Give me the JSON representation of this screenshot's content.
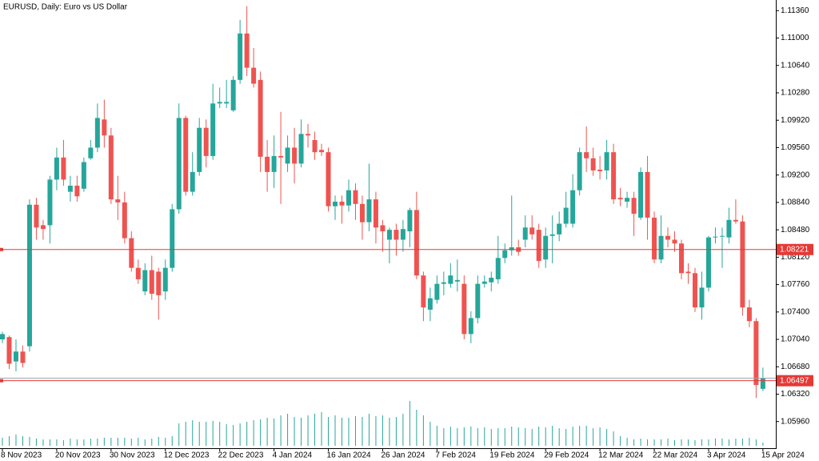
{
  "chart_data": {
    "type": "candlestick",
    "title": "EURUSD, Daily:  Euro vs US Dollar",
    "categories": [
      "8 Nov 2023",
      null,
      null,
      null,
      null,
      null,
      null,
      null,
      "20 Nov 2023",
      null,
      null,
      null,
      null,
      null,
      null,
      null,
      "30 Nov 2023",
      null,
      null,
      null,
      null,
      null,
      null,
      null,
      "12 Dec 2023",
      null,
      null,
      null,
      null,
      null,
      null,
      null,
      "22 Dec 2023",
      null,
      null,
      null,
      null,
      null,
      null,
      null,
      "4 Jan 2024",
      null,
      null,
      null,
      null,
      null,
      null,
      null,
      "16 Jan 2024",
      null,
      null,
      null,
      null,
      null,
      null,
      null,
      "26 Jan 2024",
      null,
      null,
      null,
      null,
      null,
      null,
      null,
      "7 Feb 2024",
      null,
      null,
      null,
      null,
      null,
      null,
      null,
      "19 Feb 2024",
      null,
      null,
      null,
      null,
      null,
      null,
      null,
      "29 Feb 2024",
      null,
      null,
      null,
      null,
      null,
      null,
      null,
      "12 Mar 2024",
      null,
      null,
      null,
      null,
      null,
      null,
      null,
      "22 Mar 2024",
      null,
      null,
      null,
      null,
      null,
      null,
      null,
      "3 Apr 2024",
      null,
      null,
      null,
      null,
      null,
      null,
      null,
      "15 Apr 2024"
    ],
    "open": [
      1.0704,
      1.0707,
      1.0675,
      1.0688,
      1.0695,
      1.0881,
      1.0854,
      1.0854,
      1.0914,
      1.0943,
      1.0898,
      1.0906,
      1.0902,
      1.0942,
      1.0956,
      1.0993,
      1.0972,
      1.0888,
      1.0884,
      1.0837,
      1.0798,
      1.0767,
      1.0795,
      1.0793,
      1.0767,
      1.0798,
      1.0875,
      1.0995,
      1.0898,
      1.0924,
      1.0982,
      1.0945,
      1.1014,
      1.1014,
      1.1005,
      1.1045,
      1.1106,
      1.1061,
      1.1045,
      1.0944,
      1.0924,
      1.0945,
      1.0935,
      1.0956,
      1.0935,
      1.0974,
      1.0966,
      1.0953,
      1.095,
      1.0879,
      1.0885,
      1.088,
      1.09,
      1.0882,
      1.0858,
      1.0888,
      1.0854,
      1.0835,
      1.0848,
      1.0835,
      1.0846,
      1.0874,
      1.0788,
      1.0743,
      1.0756,
      1.0777,
      1.0777,
      1.078,
      1.0777,
      1.0711,
      1.0732,
      1.0777,
      1.0779,
      1.0783,
      1.0811,
      1.0821,
      1.0825,
      1.0835,
      1.0851,
      1.0848,
      1.0809,
      1.084,
      1.0842,
      1.0856,
      1.0856,
      1.09,
      1.095,
      1.0942,
      1.0927,
      1.0926,
      1.095,
      1.089,
      1.0885,
      1.089,
      1.0864,
      1.0924,
      1.0864,
      1.0809,
      1.084,
      1.0835,
      1.083,
      1.0793,
      1.0791,
      1.0746,
      1.0772,
      1.0838,
      1.0839,
      1.0838,
      1.0861,
      1.0859,
      1.0746,
      1.0728,
      1.0639
    ],
    "high": [
      1.0714,
      1.0709,
      1.0704,
      1.0696,
      1.0888,
      1.089,
      1.0861,
      1.0919,
      1.0956,
      1.0966,
      1.0919,
      1.0919,
      1.0943,
      1.0966,
      1.1014,
      1.1019,
      1.0982,
      1.0919,
      1.0898,
      1.0846,
      1.0809,
      1.0804,
      1.0814,
      1.0798,
      1.0809,
      1.0882,
      1.1014,
      1.0998,
      1.095,
      1.0995,
      1.0993,
      1.104,
      1.1035,
      1.1045,
      1.105,
      1.1124,
      1.1142,
      1.1087,
      1.1056,
      1.0966,
      1.0972,
      1.1003,
      1.0972,
      1.0982,
      1.0993,
      1.0987,
      1.0977,
      1.0961,
      1.0956,
      1.0893,
      1.0893,
      1.0914,
      1.0909,
      1.0893,
      1.0935,
      1.0898,
      1.0861,
      1.0851,
      1.0856,
      1.0861,
      1.0877,
      1.0898,
      1.0793,
      1.0772,
      1.0788,
      1.0793,
      1.0804,
      1.0809,
      1.0788,
      1.0741,
      1.0788,
      1.0788,
      1.0793,
      1.084,
      1.083,
      1.0893,
      1.0835,
      1.0867,
      1.0867,
      1.0856,
      1.0851,
      1.0867,
      1.0872,
      1.0898,
      1.0921,
      1.0956,
      1.0984,
      1.0956,
      1.0945,
      1.0966,
      1.0961,
      1.0903,
      1.0898,
      1.0898,
      1.093,
      1.0945,
      1.0872,
      1.0867,
      1.0851,
      1.0846,
      1.0835,
      1.0804,
      1.0798,
      1.0793,
      1.084,
      1.0851,
      1.0851,
      1.0877,
      1.0888,
      1.0867,
      1.0756,
      1.0732,
      1.0667
    ],
    "low": [
      1.0699,
      1.0665,
      1.0662,
      1.0667,
      1.0688,
      1.0835,
      1.0835,
      1.083,
      1.09,
      1.0906,
      1.0885,
      1.0885,
      1.0898,
      1.094,
      1.095,
      1.0956,
      1.0882,
      1.0861,
      1.083,
      1.0793,
      1.0777,
      1.0762,
      1.0756,
      1.073,
      1.0756,
      1.0793,
      1.0869,
      1.0893,
      1.0893,
      1.0919,
      1.093,
      1.094,
      1.1008,
      1.1008,
      1.1003,
      1.104,
      1.105,
      1.1035,
      1.0924,
      1.0898,
      1.0903,
      1.0882,
      1.0924,
      1.0909,
      1.093,
      1.0956,
      1.094,
      1.0945,
      1.0872,
      1.0861,
      1.0856,
      1.0872,
      1.0861,
      1.0835,
      1.0846,
      1.083,
      1.0819,
      1.0804,
      1.0814,
      1.0819,
      1.0825,
      1.0783,
      1.0728,
      1.0728,
      1.0751,
      1.0762,
      1.0772,
      1.0767,
      1.0704,
      1.0699,
      1.0725,
      1.0772,
      1.0767,
      1.0777,
      1.0804,
      1.0814,
      1.0814,
      1.0825,
      1.0835,
      1.0798,
      1.0798,
      1.0804,
      1.0833,
      1.0851,
      1.0851,
      1.0893,
      1.0924,
      1.0919,
      1.0914,
      1.0914,
      1.0882,
      1.0879,
      1.0877,
      1.084,
      1.0861,
      1.0835,
      1.0804,
      1.0804,
      1.0825,
      1.0819,
      1.0783,
      1.0777,
      1.074,
      1.073,
      1.0767,
      1.083,
      1.0798,
      1.083,
      1.0856,
      1.0735,
      1.072,
      1.0627,
      1.0636
    ],
    "close": [
      1.0711,
      1.0672,
      1.0688,
      1.0673,
      1.0881,
      1.0851,
      1.0849,
      1.0914,
      1.0943,
      1.0914,
      1.0906,
      1.0892,
      1.0937,
      1.0956,
      1.0995,
      1.0972,
      1.0888,
      1.0884,
      1.0837,
      1.0798,
      1.0783,
      1.0795,
      1.0764,
      1.0762,
      1.0798,
      1.0875,
      1.0995,
      1.0898,
      1.0924,
      1.0982,
      1.0945,
      1.1014,
      1.1016,
      1.1016,
      1.1045,
      1.1106,
      1.1061,
      1.104,
      1.0944,
      1.0924,
      1.0945,
      1.0943,
      1.0956,
      1.0935,
      1.0974,
      1.0972,
      1.095,
      1.095,
      1.0879,
      1.0885,
      1.088,
      1.09,
      1.0882,
      1.0858,
      1.0888,
      1.0851,
      1.0846,
      1.0848,
      1.0835,
      1.0849,
      1.0874,
      1.0788,
      1.0746,
      1.0758,
      1.0777,
      1.0779,
      1.0788,
      1.0782,
      1.0711,
      1.0732,
      1.0777,
      1.078,
      1.0785,
      1.0811,
      1.0821,
      1.0825,
      1.0819,
      1.0851,
      1.0842,
      1.0807,
      1.084,
      1.0842,
      1.0856,
      1.0877,
      1.09,
      1.095,
      1.0942,
      1.0926,
      1.0925,
      1.095,
      1.0888,
      1.0888,
      1.089,
      1.0869,
      1.0924,
      1.0864,
      1.0809,
      1.084,
      1.0835,
      1.083,
      1.0791,
      1.0791,
      1.0746,
      1.0772,
      1.0838,
      1.0839,
      1.084,
      1.0861,
      1.0859,
      1.0746,
      1.0728,
      1.0644,
      1.0653
    ],
    "volume": [
      10,
      12,
      14,
      12,
      11,
      9,
      8,
      8,
      8,
      7,
      9,
      8,
      8,
      9,
      9,
      10,
      10,
      10,
      10,
      9,
      10,
      8,
      9,
      11,
      10,
      12,
      28,
      30,
      32,
      30,
      30,
      31,
      30,
      27,
      26,
      28,
      30,
      32,
      33,
      35,
      34,
      38,
      40,
      36,
      35,
      38,
      40,
      42,
      36,
      38,
      35,
      35,
      37,
      36,
      40,
      37,
      38,
      35,
      36,
      40,
      56,
      45,
      38,
      30,
      25,
      22,
      24,
      22,
      23,
      24,
      22,
      23,
      21,
      22,
      22,
      24,
      23,
      22,
      21,
      24,
      23,
      25,
      22,
      21,
      24,
      25,
      25,
      22,
      23,
      21,
      18,
      12,
      10,
      8,
      9,
      8,
      8,
      8,
      9,
      7,
      8,
      8,
      7,
      8,
      8,
      9,
      9,
      8,
      9,
      9,
      10,
      8,
      4
    ],
    "up_color": "#26a69a",
    "down_color": "#ef5350",
    "volume_color": "#26a69a",
    "ylim": [
      1.0561,
      1.115
    ],
    "yticks": [
      {
        "value": 1.1136,
        "label": "1.11360"
      },
      {
        "value": 1.11,
        "label": "1.11000"
      },
      {
        "value": 1.1064,
        "label": "1.10640"
      },
      {
        "value": 1.1028,
        "label": "1.10280"
      },
      {
        "value": 1.0992,
        "label": "1.09920"
      },
      {
        "value": 1.0956,
        "label": "1.09560"
      },
      {
        "value": 1.092,
        "label": "1.09200"
      },
      {
        "value": 1.0884,
        "label": "1.08840"
      },
      {
        "value": 1.0848,
        "label": "1.08480"
      },
      {
        "value": 1.0812,
        "label": "1.08120"
      },
      {
        "value": 1.0776,
        "label": "1.07760"
      },
      {
        "value": 1.074,
        "label": "1.07400"
      },
      {
        "value": 1.0704,
        "label": "1.07040"
      },
      {
        "value": 1.0668,
        "label": "1.06680"
      },
      {
        "value": 1.0632,
        "label": "1.06320"
      },
      {
        "value": 1.0596,
        "label": "1.05960"
      }
    ],
    "price_lines": [
      {
        "value": 1.08221,
        "color": "#e53935"
      },
      {
        "value": 1.06497,
        "color": "#e53935"
      }
    ],
    "last_price_color": "#9aa7b0"
  }
}
